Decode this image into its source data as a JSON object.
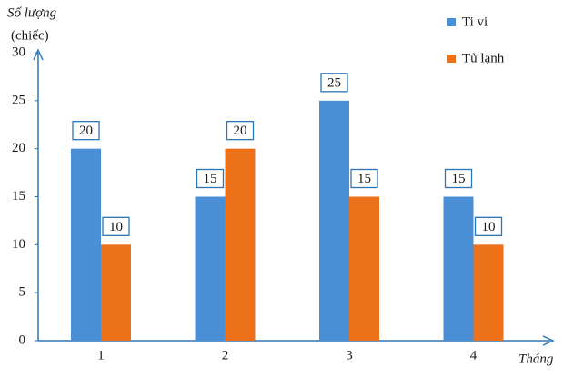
{
  "chart_data": {
    "type": "bar",
    "y_label": "Số lượng",
    "y_unit": "(chiếc)",
    "x_label": "Tháng",
    "categories": [
      "1",
      "2",
      "3",
      "4"
    ],
    "series": [
      {
        "name": "Ti vi",
        "color": "#4a8fd6",
        "values": [
          20,
          15,
          25,
          15
        ]
      },
      {
        "name": "Tủ lạnh",
        "color": "#ec7118",
        "values": [
          10,
          20,
          15,
          10
        ]
      }
    ],
    "ylim": [
      0,
      30
    ],
    "yticks": [
      0,
      5,
      10,
      15,
      20,
      25,
      30
    ],
    "grid": false,
    "legend": "top-right"
  }
}
